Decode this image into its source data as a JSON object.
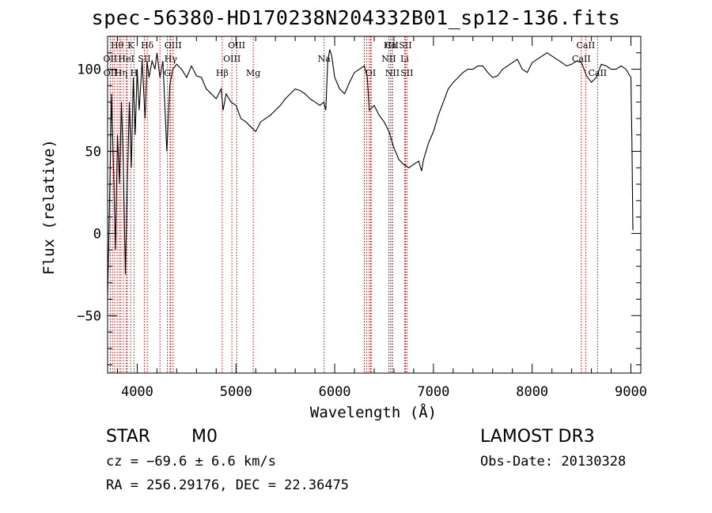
{
  "chart_data": {
    "type": "line",
    "title": "spec-56380-HD170238N204332B01_sp12-136.fits",
    "xlabel": "Wavelength (Å)",
    "ylabel": "Flux (relative)",
    "xlim": [
      3700,
      9100
    ],
    "ylim": [
      -85,
      120
    ],
    "xticks": [
      4000,
      5000,
      6000,
      7000,
      8000,
      9000
    ],
    "yticks": [
      -50,
      0,
      50,
      100
    ],
    "line_color": "#000000",
    "marker_color": "#cc0000",
    "spectrum": [
      [
        3700,
        -40
      ],
      [
        3720,
        20
      ],
      [
        3740,
        85
      ],
      [
        3760,
        40
      ],
      [
        3780,
        -10
      ],
      [
        3800,
        60
      ],
      [
        3820,
        30
      ],
      [
        3840,
        80
      ],
      [
        3860,
        40
      ],
      [
        3880,
        -25
      ],
      [
        3900,
        30
      ],
      [
        3920,
        80
      ],
      [
        3940,
        40
      ],
      [
        3960,
        95
      ],
      [
        3980,
        60
      ],
      [
        4000,
        100
      ],
      [
        4020,
        75
      ],
      [
        4050,
        105
      ],
      [
        4080,
        70
      ],
      [
        4100,
        105
      ],
      [
        4120,
        95
      ],
      [
        4150,
        105
      ],
      [
        4180,
        100
      ],
      [
        4200,
        110
      ],
      [
        4230,
        95
      ],
      [
        4260,
        105
      ],
      [
        4300,
        50
      ],
      [
        4330,
        90
      ],
      [
        4360,
        100
      ],
      [
        4400,
        103
      ],
      [
        4450,
        100
      ],
      [
        4500,
        95
      ],
      [
        4550,
        102
      ],
      [
        4600,
        96
      ],
      [
        4650,
        95
      ],
      [
        4700,
        88
      ],
      [
        4750,
        85
      ],
      [
        4800,
        82
      ],
      [
        4850,
        88
      ],
      [
        4870,
        75
      ],
      [
        4900,
        85
      ],
      [
        4950,
        80
      ],
      [
        5000,
        78
      ],
      [
        5050,
        70
      ],
      [
        5100,
        68
      ],
      [
        5150,
        65
      ],
      [
        5200,
        62
      ],
      [
        5250,
        68
      ],
      [
        5300,
        70
      ],
      [
        5350,
        72
      ],
      [
        5400,
        75
      ],
      [
        5450,
        78
      ],
      [
        5500,
        82
      ],
      [
        5550,
        85
      ],
      [
        5600,
        88
      ],
      [
        5650,
        87
      ],
      [
        5700,
        85
      ],
      [
        5750,
        82
      ],
      [
        5800,
        80
      ],
      [
        5850,
        78
      ],
      [
        5890,
        80
      ],
      [
        5910,
        75
      ],
      [
        5930,
        105
      ],
      [
        5950,
        112
      ],
      [
        5970,
        108
      ],
      [
        6000,
        95
      ],
      [
        6050,
        88
      ],
      [
        6100,
        85
      ],
      [
        6150,
        92
      ],
      [
        6200,
        98
      ],
      [
        6250,
        100
      ],
      [
        6300,
        102
      ],
      [
        6330,
        95
      ],
      [
        6350,
        75
      ],
      [
        6400,
        78
      ],
      [
        6450,
        72
      ],
      [
        6500,
        68
      ],
      [
        6550,
        62
      ],
      [
        6600,
        52
      ],
      [
        6650,
        45
      ],
      [
        6700,
        42
      ],
      [
        6750,
        40
      ],
      [
        6800,
        42
      ],
      [
        6850,
        44
      ],
      [
        6880,
        38
      ],
      [
        6900,
        45
      ],
      [
        6950,
        55
      ],
      [
        7000,
        62
      ],
      [
        7050,
        72
      ],
      [
        7100,
        80
      ],
      [
        7150,
        88
      ],
      [
        7200,
        92
      ],
      [
        7250,
        95
      ],
      [
        7300,
        98
      ],
      [
        7350,
        100
      ],
      [
        7400,
        100
      ],
      [
        7450,
        102
      ],
      [
        7500,
        102
      ],
      [
        7550,
        98
      ],
      [
        7600,
        95
      ],
      [
        7650,
        96
      ],
      [
        7700,
        100
      ],
      [
        7750,
        102
      ],
      [
        7800,
        104
      ],
      [
        7850,
        106
      ],
      [
        7900,
        100
      ],
      [
        7950,
        98
      ],
      [
        8000,
        104
      ],
      [
        8050,
        106
      ],
      [
        8100,
        108
      ],
      [
        8150,
        110
      ],
      [
        8200,
        108
      ],
      [
        8250,
        106
      ],
      [
        8300,
        104
      ],
      [
        8350,
        102
      ],
      [
        8400,
        103
      ],
      [
        8450,
        105
      ],
      [
        8500,
        104
      ],
      [
        8550,
        96
      ],
      [
        8600,
        92
      ],
      [
        8650,
        95
      ],
      [
        8700,
        103
      ],
      [
        8750,
        102
      ],
      [
        8800,
        100
      ],
      [
        8850,
        100
      ],
      [
        8900,
        102
      ],
      [
        8950,
        100
      ],
      [
        9000,
        95
      ],
      [
        9010,
        55
      ],
      [
        9020,
        2
      ]
    ],
    "lines": [
      {
        "name": "Hθ",
        "x": 3797,
        "row": 0
      },
      {
        "name": "K",
        "x": 3934,
        "row": 0
      },
      {
        "name": "Hδ",
        "x": 4102,
        "row": 0
      },
      {
        "name": "OIII",
        "x": 4363,
        "row": 0
      },
      {
        "name": "OIII",
        "x": 5007,
        "row": 0
      },
      {
        "name": "CII",
        "x": 6580,
        "row": 0
      },
      {
        "name": "Hα",
        "x": 6563,
        "row": 0
      },
      {
        "name": "SII",
        "x": 6716,
        "row": 0
      },
      {
        "name": "CaII",
        "x": 8542,
        "row": 0
      },
      {
        "name": "OII",
        "x": 3727,
        "row": 1
      },
      {
        "name": "HeI",
        "x": 3889,
        "row": 1
      },
      {
        "name": "SII",
        "x": 4072,
        "row": 1
      },
      {
        "name": "Hγ",
        "x": 4340,
        "row": 1
      },
      {
        "name": "OIII",
        "x": 4959,
        "row": 1
      },
      {
        "name": "Na",
        "x": 5893,
        "row": 1
      },
      {
        "name": "NII",
        "x": 6548,
        "row": 1
      },
      {
        "name": "Li",
        "x": 6708,
        "row": 1
      },
      {
        "name": "CaII",
        "x": 8498,
        "row": 1
      },
      {
        "name": "OII",
        "x": 3729,
        "row": 2
      },
      {
        "name": "Hη",
        "x": 3835,
        "row": 2
      },
      {
        "name": "H",
        "x": 3968,
        "row": 2
      },
      {
        "name": "G",
        "x": 4305,
        "row": 2
      },
      {
        "name": "Hβ",
        "x": 4861,
        "row": 2
      },
      {
        "name": "Mg",
        "x": 5175,
        "row": 2
      },
      {
        "name": "OI",
        "x": 6364,
        "row": 2
      },
      {
        "name": "NII",
        "x": 6584,
        "row": 2
      },
      {
        "name": "SII",
        "x": 6731,
        "row": 2
      },
      {
        "name": "CaII",
        "x": 8662,
        "row": 2
      }
    ],
    "extra_marker_x": [
      3750,
      3771,
      3820,
      3860,
      3900,
      4230,
      4332,
      6300,
      6325,
      6350,
      6370
    ]
  },
  "info": {
    "object_type": "STAR",
    "subclass": "M0",
    "survey": "LAMOST DR3",
    "cz": "cz = −69.6 ± 6.6 km/s",
    "obs_date": "Obs-Date: 20130328",
    "coords": "RA = 256.29176, DEC =  22.36475"
  }
}
